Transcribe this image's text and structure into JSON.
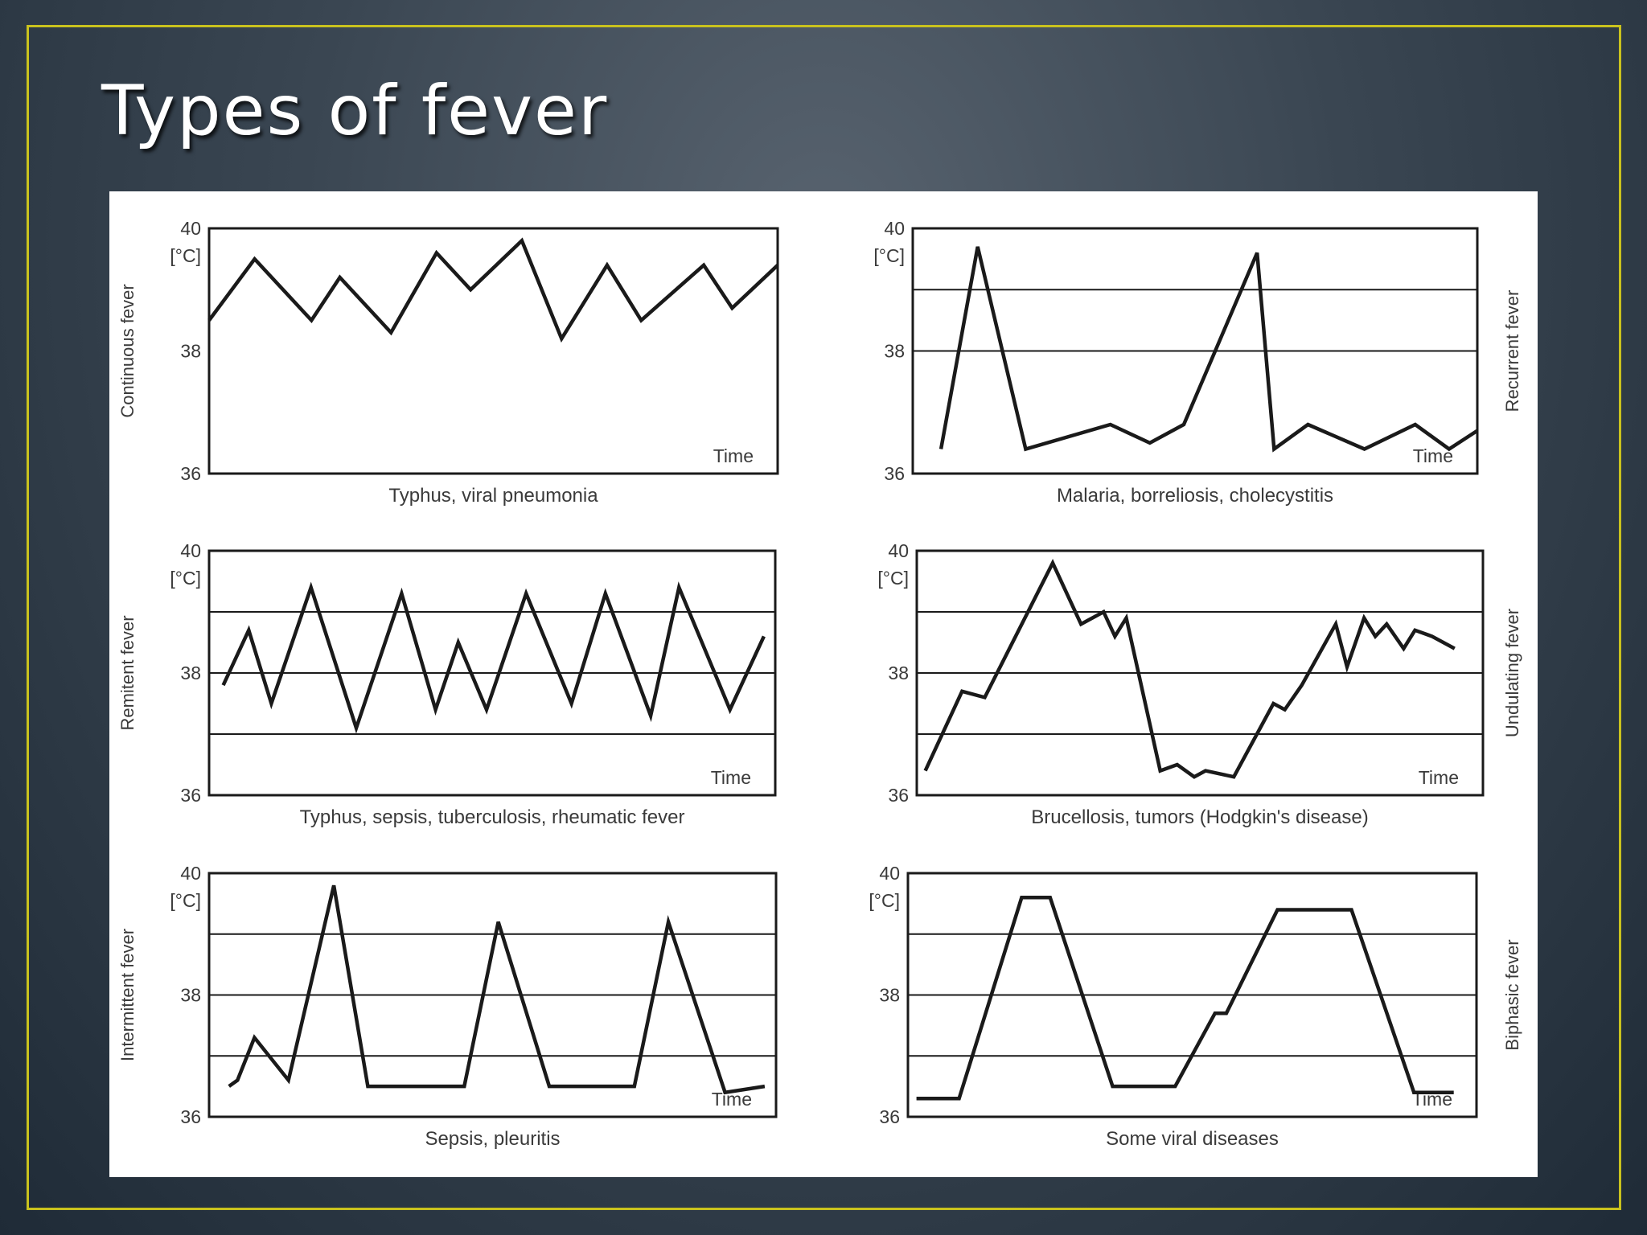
{
  "slide": {
    "title": "Types of fever"
  },
  "colors": {
    "frame": "#c9c21e",
    "line": "#1a1a1a",
    "panel_bg": "#ffffff"
  },
  "chart_data": [
    {
      "type": "line",
      "fever_label": "Continuous fever",
      "caption": "Typhus, viral pneumonia",
      "xlabel": "Time",
      "unit": "[°C]",
      "yticks": [
        36,
        38,
        40
      ],
      "ylim": [
        36,
        40
      ],
      "xlim": [
        0,
        100
      ],
      "gridlines": [],
      "series": [
        {
          "x": [
            0,
            8,
            18,
            23,
            32,
            40,
            46,
            55,
            62,
            70,
            76,
            87,
            92,
            102
          ],
          "y": [
            38.5,
            39.5,
            38.5,
            39.2,
            38.3,
            39.6,
            39.0,
            39.8,
            38.2,
            39.4,
            38.5,
            39.4,
            38.7,
            39.4
          ]
        }
      ]
    },
    {
      "type": "line",
      "fever_label": "Recurrent fever",
      "caption": "Malaria, borreliosis, cholecystitis",
      "xlabel": "Time",
      "unit": "[°C]",
      "yticks": [
        36,
        38,
        40
      ],
      "ylim": [
        36,
        40
      ],
      "xlim": [
        0,
        100
      ],
      "gridlines": [
        39,
        38
      ],
      "series": [
        {
          "x": [
            5,
            11.5,
            20,
            35,
            42,
            48,
            61,
            64,
            70,
            80,
            89,
            95,
            100
          ],
          "y": [
            36.4,
            39.7,
            36.4,
            36.8,
            36.5,
            36.8,
            39.6,
            36.4,
            36.8,
            36.4,
            36.8,
            36.4,
            36.7
          ]
        }
      ]
    },
    {
      "type": "line",
      "fever_label": "Remitent fever",
      "caption": "Typhus, sepsis, tuberculosis, rheumatic fever",
      "xlabel": "Time",
      "unit": "[°C]",
      "yticks": [
        36,
        38,
        40
      ],
      "ylim": [
        36,
        40
      ],
      "xlim": [
        0,
        100
      ],
      "gridlines": [
        39,
        38,
        37
      ],
      "series": [
        {
          "x": [
            2.5,
            7,
            11,
            18,
            26,
            34,
            40,
            44,
            49,
            56,
            64,
            70,
            78,
            83,
            92,
            98
          ],
          "y": [
            37.8,
            38.7,
            37.5,
            39.4,
            37.1,
            39.3,
            37.4,
            38.5,
            37.4,
            39.3,
            37.5,
            39.3,
            37.3,
            39.4,
            37.4,
            38.6
          ]
        }
      ]
    },
    {
      "type": "line",
      "fever_label": "Undulating fever",
      "caption": "Brucellosis, tumors (Hodgkin's disease)",
      "xlabel": "Time",
      "unit": "[°C]",
      "yticks": [
        36,
        38,
        40
      ],
      "ylim": [
        36,
        40
      ],
      "xlim": [
        0,
        100
      ],
      "gridlines": [
        39,
        38,
        37
      ],
      "series": [
        {
          "x": [
            1.5,
            8,
            12,
            24,
            29,
            33,
            35,
            37,
            43,
            46,
            49,
            51,
            56,
            63,
            65,
            68,
            74,
            76,
            79,
            81,
            83,
            86,
            88,
            91,
            95
          ],
          "y": [
            36.4,
            37.7,
            37.6,
            39.8,
            38.8,
            39.0,
            38.6,
            38.9,
            36.4,
            36.5,
            36.3,
            36.4,
            36.3,
            37.5,
            37.4,
            37.8,
            38.8,
            38.1,
            38.9,
            38.6,
            38.8,
            38.4,
            38.7,
            38.6,
            38.4
          ]
        }
      ]
    },
    {
      "type": "line",
      "fever_label": "Intermittent fever",
      "caption": "Sepsis, pleuritis",
      "xlabel": "Time",
      "unit": "[°C]",
      "yticks": [
        36,
        38,
        40
      ],
      "ylim": [
        36,
        40
      ],
      "xlim": [
        0,
        100
      ],
      "gridlines": [
        39,
        38,
        37
      ],
      "series": [
        {
          "x": [
            3.5,
            5,
            8,
            14,
            22,
            28,
            45,
            51,
            60,
            75,
            81,
            91,
            98
          ],
          "y": [
            36.5,
            36.6,
            37.3,
            36.6,
            39.8,
            36.5,
            36.5,
            39.2,
            36.5,
            36.5,
            39.2,
            36.4,
            36.5
          ]
        }
      ]
    },
    {
      "type": "line",
      "fever_label": "Biphasic fever",
      "caption": "Some viral diseases",
      "xlabel": "Time",
      "unit": "[°C]",
      "yticks": [
        36,
        38,
        40
      ],
      "ylim": [
        36,
        40
      ],
      "xlim": [
        0,
        100
      ],
      "gridlines": [
        39,
        38,
        37
      ],
      "series": [
        {
          "x": [
            1.5,
            9,
            20,
            25,
            36,
            47,
            54,
            56,
            65,
            78,
            89,
            96
          ],
          "y": [
            36.3,
            36.3,
            39.6,
            39.6,
            36.5,
            36.5,
            37.7,
            37.7,
            39.4,
            39.4,
            36.4,
            36.4
          ]
        }
      ]
    }
  ]
}
